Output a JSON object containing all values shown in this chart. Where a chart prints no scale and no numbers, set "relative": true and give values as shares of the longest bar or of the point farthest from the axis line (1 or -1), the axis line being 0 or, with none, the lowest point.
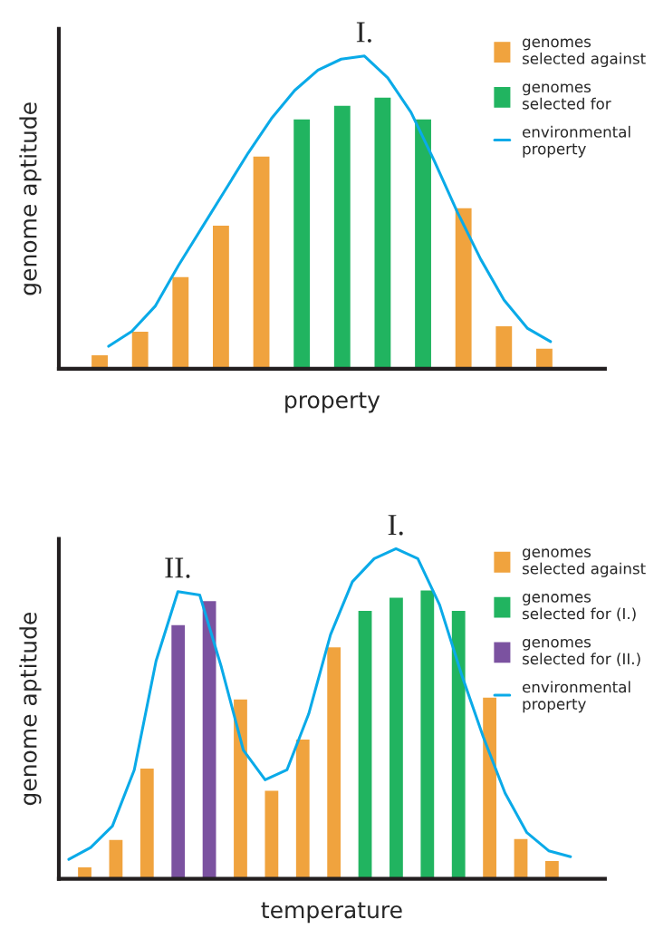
{
  "chart_data": [
    {
      "type": "bar",
      "relative": true,
      "stacked": true,
      "xlabel": "property",
      "ylabel": "genome aptitude",
      "legend": "top right",
      "categories": [
        null,
        null,
        null,
        null,
        null,
        null,
        null,
        null,
        null,
        null,
        null,
        null
      ],
      "series": [
        {
          "name": "genomes selected against",
          "color": "#f0a33e",
          "values": [
            0.05,
            0.137,
            0.338,
            0.528,
            0.783,
            null,
            null,
            null,
            null,
            0.592,
            0.157,
            0.074
          ]
        },
        {
          "name": "genomes selected for",
          "color": "#21b460",
          "values": [
            null,
            null,
            null,
            null,
            null,
            0.92,
            0.97,
            1.0,
            0.92,
            null,
            null,
            null
          ]
        }
      ]
    },
    {
      "type": "line",
      "relative": true,
      "legend": "top right",
      "annotations": [
        "I."
      ],
      "categories": [
        null,
        null,
        null,
        null,
        null,
        null,
        null,
        null,
        null,
        null,
        null,
        null,
        null,
        null,
        null,
        null,
        null,
        null,
        null,
        null
      ],
      "series": [
        {
          "name": "environmental property",
          "color": "#0aaae8",
          "values": [
            0.072,
            0.12,
            0.2,
            0.33,
            0.45,
            0.57,
            0.69,
            0.8,
            0.89,
            0.955,
            0.99,
            1.0,
            0.93,
            0.82,
            0.665,
            0.5,
            0.35,
            0.22,
            0.13,
            0.087
          ]
        }
      ]
    },
    {
      "type": "bar",
      "relative": true,
      "stacked": true,
      "xlabel": "temperature",
      "ylabel": "genome aptitude",
      "legend": "top right",
      "categories": [
        null,
        null,
        null,
        null,
        null,
        null,
        null,
        null,
        null,
        null,
        null,
        null,
        null,
        null,
        null,
        null
      ],
      "series": [
        {
          "name": "genomes selected against",
          "color": "#f0a33e",
          "values": [
            0.04,
            0.135,
            0.382,
            null,
            null,
            0.622,
            0.305,
            0.483,
            0.803,
            null,
            null,
            null,
            null,
            0.628,
            0.138,
            0.062
          ]
        },
        {
          "name": "genomes selected for (I.)",
          "color": "#21b460",
          "values": [
            null,
            null,
            null,
            null,
            null,
            null,
            null,
            null,
            null,
            0.929,
            0.975,
            1.0,
            0.929,
            null,
            null,
            null
          ]
        },
        {
          "name": "genomes selected for (II.)",
          "color": "#7b52a0",
          "values": [
            null,
            null,
            null,
            0.88,
            0.963,
            null,
            null,
            null,
            null,
            null,
            null,
            null,
            null,
            null,
            null,
            null
          ]
        }
      ]
    },
    {
      "type": "line",
      "relative": true,
      "legend": "top right",
      "annotations": [
        "II.",
        "I."
      ],
      "categories": [
        null,
        null,
        null,
        null,
        null,
        null,
        null,
        null,
        null,
        null,
        null,
        null,
        null,
        null,
        null,
        null,
        null,
        null,
        null,
        null,
        null,
        null,
        null,
        null
      ],
      "series": [
        {
          "name": "environmental property",
          "color": "#0aaae8",
          "values": [
            0.059,
            0.095,
            0.16,
            0.33,
            0.66,
            0.87,
            0.86,
            0.64,
            0.39,
            0.3,
            0.33,
            0.5,
            0.74,
            0.9,
            0.97,
            1.0,
            0.97,
            0.83,
            0.62,
            0.43,
            0.26,
            0.14,
            0.085,
            0.067
          ]
        }
      ]
    }
  ]
}
